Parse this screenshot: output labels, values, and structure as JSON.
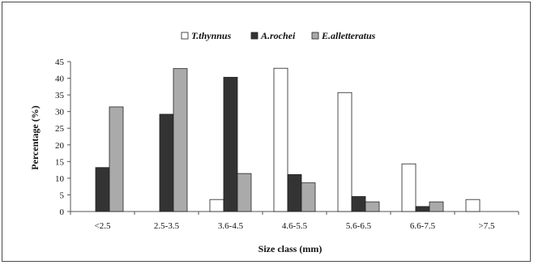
{
  "chart_data": {
    "type": "bar",
    "title": "",
    "xlabel": "Size class (mm)",
    "ylabel": "Percentage (%)",
    "ylim": [
      0,
      45
    ],
    "yticks": [
      "0",
      "5",
      "10",
      "15",
      "20",
      "25",
      "30",
      "35",
      "40",
      "45"
    ],
    "categories": [
      "<2.5",
      "2.5-3.5",
      "3.6-4.5",
      "4.6-5.5",
      "5.6-6.5",
      "6.6-7.5",
      ">7.5"
    ],
    "series": [
      {
        "name": "T.thynnus",
        "color": "#ffffff",
        "values": [
          0,
          0,
          3.6,
          43,
          35.7,
          14.3,
          3.6
        ]
      },
      {
        "name": "A.rochei",
        "color": "#333333",
        "values": [
          13.2,
          29.2,
          40.3,
          11.1,
          4.5,
          1.5,
          0
        ]
      },
      {
        "name": "E.alletteratus",
        "color": "#aaaaaa",
        "values": [
          31.4,
          42.9,
          11.4,
          8.6,
          2.9,
          2.9,
          0
        ]
      }
    ],
    "grid": false,
    "legend_position": "top"
  }
}
